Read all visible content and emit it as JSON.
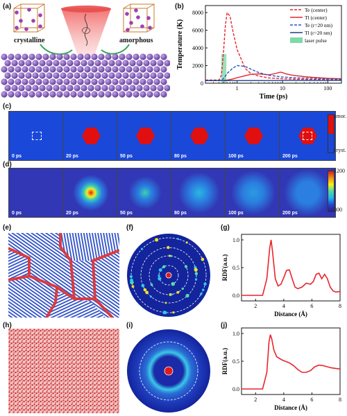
{
  "panel_a": {
    "label": "(a)",
    "left_caption": "crystalline",
    "right_caption": "amorphous"
  },
  "panel_b": {
    "label": "(b)",
    "chart_data": {
      "type": "line",
      "xlabel": "Time (ps)",
      "ylabel": "Temperature (K)",
      "xscale": "log",
      "xlim": [
        0.2,
        200
      ],
      "ylim": [
        0,
        8800
      ],
      "x_ticks": [
        "1",
        "10",
        "100"
      ],
      "y_ticks": [
        "0",
        "2000",
        "4000",
        "6000",
        "8000"
      ],
      "legend_position": "top-right",
      "series": [
        {
          "name": "Te (center)",
          "color": "#e8242b",
          "dash": true,
          "x": [
            0.2,
            0.4,
            0.45,
            0.5,
            0.55,
            0.6,
            0.7,
            0.8,
            1.0,
            1.5,
            2,
            3,
            5,
            10,
            20,
            50,
            100,
            200
          ],
          "y": [
            350,
            350,
            900,
            3500,
            6500,
            8000,
            7600,
            6000,
            3800,
            1700,
            1100,
            800,
            600,
            500,
            450,
            420,
            400,
            380
          ]
        },
        {
          "name": "Tl (center)",
          "color": "#e8242b",
          "dash": false,
          "x": [
            0.2,
            0.4,
            0.5,
            0.6,
            0.8,
            1.0,
            1.5,
            2,
            3,
            5,
            7,
            9,
            10,
            12,
            15,
            20,
            30,
            50,
            100,
            200
          ],
          "y": [
            300,
            300,
            310,
            350,
            480,
            620,
            850,
            1000,
            1050,
            950,
            1100,
            1250,
            1200,
            1050,
            950,
            850,
            750,
            650,
            550,
            500
          ]
        },
        {
          "name": "Te (r=20 nm)",
          "color": "#1f57c3",
          "dash": true,
          "x": [
            0.2,
            0.4,
            0.5,
            0.6,
            0.8,
            1.0,
            1.5,
            2,
            3,
            5,
            10,
            20,
            50,
            100,
            200
          ],
          "y": [
            300,
            300,
            500,
            1100,
            1700,
            2000,
            1900,
            1600,
            1200,
            900,
            700,
            600,
            550,
            500,
            480
          ]
        },
        {
          "name": "Tl (r=20 nm)",
          "color": "#1a3f8f",
          "dash": false,
          "x": [
            0.2,
            1,
            10,
            100,
            200
          ],
          "y": [
            300,
            300,
            310,
            320,
            320
          ]
        }
      ],
      "annotations": [
        {
          "label": "laser pulse",
          "x_range": [
            0.45,
            0.58
          ],
          "color": "#7fd9a8"
        }
      ]
    }
  },
  "panel_c": {
    "label": "(c)",
    "times": [
      "0 ps",
      "20 ps",
      "50 ps",
      "80 ps",
      "100 ps",
      "200 ps"
    ],
    "colorbar_top": "amor.",
    "colorbar_bottom": "cryst."
  },
  "panel_d": {
    "label": "(d)",
    "times": [
      "0 ps",
      "20 ps",
      "50 ps",
      "80 ps",
      "100 ps",
      "200 ps"
    ],
    "colorbar_max": "1200",
    "colorbar_min": "300"
  },
  "panel_e": {
    "label": "(e)"
  },
  "panel_f": {
    "label": "(f)"
  },
  "panel_g": {
    "label": "(g)",
    "chart_data": {
      "type": "line",
      "xlabel": "Distance (Å)",
      "ylabel": "RDF(a.u.)",
      "xlim": [
        1,
        8
      ],
      "ylim": [
        -0.1,
        1.1
      ],
      "x_ticks": [
        "2",
        "4",
        "6",
        "8"
      ],
      "y_ticks": [
        "0.0",
        "0.5",
        "1.0"
      ],
      "x": [
        1.0,
        2.5,
        2.8,
        3.0,
        3.1,
        3.2,
        3.4,
        3.6,
        3.8,
        4.0,
        4.2,
        4.4,
        4.6,
        4.8,
        5.0,
        5.3,
        5.6,
        5.9,
        6.1,
        6.3,
        6.5,
        6.7,
        6.9,
        7.1,
        7.3,
        7.5,
        7.7,
        8.0
      ],
      "y": [
        0.0,
        0.0,
        0.3,
        0.85,
        1.0,
        0.8,
        0.3,
        0.17,
        0.2,
        0.32,
        0.45,
        0.46,
        0.3,
        0.15,
        0.12,
        0.15,
        0.22,
        0.2,
        0.25,
        0.38,
        0.4,
        0.3,
        0.38,
        0.3,
        0.15,
        0.08,
        0.06,
        0.07
      ],
      "color": "#e8242b"
    }
  },
  "panel_h": {
    "label": "(h)"
  },
  "panel_i": {
    "label": "(i)"
  },
  "panel_j": {
    "label": "(j)",
    "chart_data": {
      "type": "line",
      "xlabel": "Distance (Å)",
      "ylabel": "RDF(a.u.)",
      "xlim": [
        1,
        8
      ],
      "ylim": [
        -0.1,
        1.1
      ],
      "x_ticks": [
        "2",
        "4",
        "6",
        "8"
      ],
      "y_ticks": [
        "0.0",
        "0.5",
        "1.0"
      ],
      "x": [
        1.0,
        2.5,
        2.8,
        2.95,
        3.05,
        3.15,
        3.3,
        3.5,
        3.7,
        3.9,
        4.1,
        4.4,
        4.7,
        5.0,
        5.3,
        5.6,
        5.9,
        6.2,
        6.5,
        6.8,
        7.1,
        7.4,
        7.7,
        8.0
      ],
      "y": [
        0.0,
        0.0,
        0.3,
        0.85,
        0.98,
        0.9,
        0.7,
        0.58,
        0.55,
        0.52,
        0.5,
        0.47,
        0.42,
        0.35,
        0.3,
        0.3,
        0.33,
        0.4,
        0.43,
        0.42,
        0.4,
        0.38,
        0.37,
        0.36
      ],
      "color": "#e8242b"
    }
  }
}
